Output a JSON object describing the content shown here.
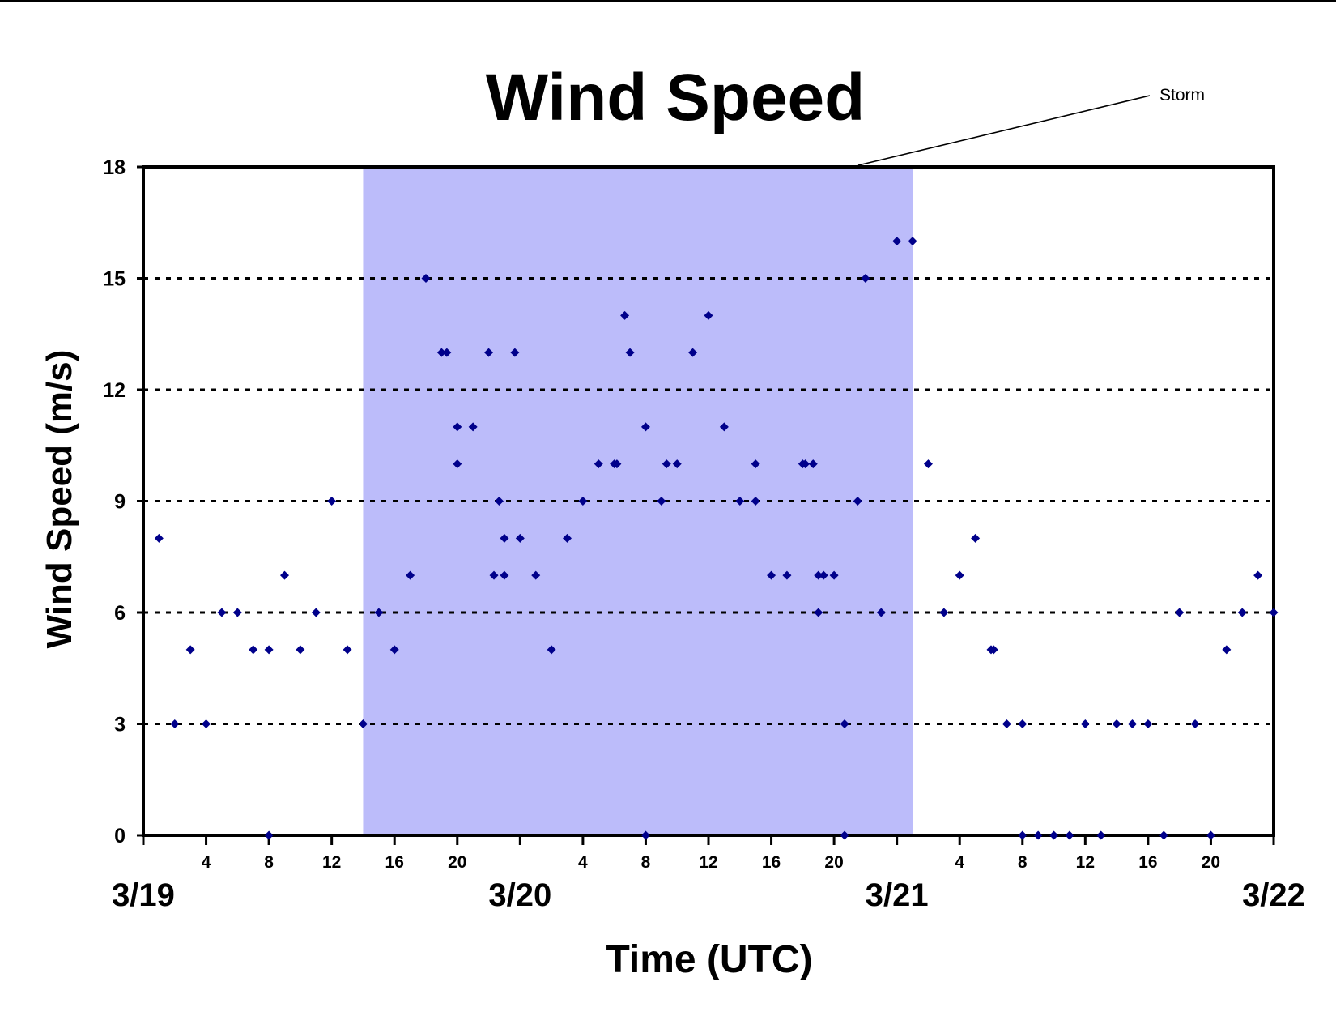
{
  "chart_data": {
    "type": "scatter",
    "title": "Wind Speed",
    "xlabel": "Time (UTC)",
    "ylabel": "Wind Speed (m/s)",
    "annotation": "Storm",
    "grid": true,
    "ylim": [
      0,
      18
    ],
    "yticks": [
      0,
      3,
      6,
      9,
      12,
      15,
      18
    ],
    "xlim": [
      "3/19 00:00",
      "3/22 00:00"
    ],
    "hour_tick_labels": [
      "4",
      "8",
      "12",
      "16",
      "20",
      "4",
      "8",
      "12",
      "16",
      "20",
      "4",
      "8",
      "12",
      "16",
      "20"
    ],
    "date_labels": [
      "3/19",
      "3/20",
      "3/21",
      "3/22"
    ],
    "storm_period": [
      "3/19 14:00",
      "3/21 01:00"
    ],
    "colors": {
      "points": "#00008b",
      "storm": "#bcbcfa",
      "axis": "#000000"
    },
    "series": [
      {
        "values": [
          [
            "3/19 01:00",
            8
          ],
          [
            "3/19 02:00",
            3
          ],
          [
            "3/19 03:00",
            5
          ],
          [
            "3/19 04:00",
            3
          ],
          [
            "3/19 05:00",
            6
          ],
          [
            "3/19 06:00",
            6
          ],
          [
            "3/19 07:00",
            5
          ],
          [
            "3/19 08:00",
            5
          ],
          [
            "3/19 08:00",
            0
          ],
          [
            "3/19 09:00",
            7
          ],
          [
            "3/19 10:00",
            5
          ],
          [
            "3/19 11:00",
            6
          ],
          [
            "3/19 12:00",
            9
          ],
          [
            "3/19 13:00",
            5
          ],
          [
            "3/19 14:00",
            3
          ],
          [
            "3/19 15:00",
            6
          ],
          [
            "3/19 16:00",
            5
          ],
          [
            "3/19 17:00",
            7
          ],
          [
            "3/19 18:00",
            15
          ],
          [
            "3/19 19:00",
            13
          ],
          [
            "3/19 19:20",
            13
          ],
          [
            "3/19 20:00",
            11
          ],
          [
            "3/19 20:00",
            10
          ],
          [
            "3/19 21:00",
            11
          ],
          [
            "3/19 22:00",
            13
          ],
          [
            "3/19 22:20",
            7
          ],
          [
            "3/19 22:40",
            9
          ],
          [
            "3/19 23:00",
            8
          ],
          [
            "3/19 23:00",
            7
          ],
          [
            "3/19 23:40",
            13
          ],
          [
            "3/20 00:00",
            8
          ],
          [
            "3/20 01:00",
            7
          ],
          [
            "3/20 02:00",
            5
          ],
          [
            "3/20 03:00",
            8
          ],
          [
            "3/20 04:00",
            9
          ],
          [
            "3/20 05:00",
            10
          ],
          [
            "3/20 06:00",
            10
          ],
          [
            "3/20 06:10",
            10
          ],
          [
            "3/20 06:40",
            14
          ],
          [
            "3/20 07:00",
            13
          ],
          [
            "3/20 08:00",
            11
          ],
          [
            "3/20 08:00",
            0
          ],
          [
            "3/20 09:00",
            9
          ],
          [
            "3/20 09:20",
            10
          ],
          [
            "3/20 10:00",
            10
          ],
          [
            "3/20 11:00",
            13
          ],
          [
            "3/20 12:00",
            14
          ],
          [
            "3/20 13:00",
            11
          ],
          [
            "3/20 14:00",
            9
          ],
          [
            "3/20 15:00",
            10
          ],
          [
            "3/20 15:00",
            9
          ],
          [
            "3/20 16:00",
            7
          ],
          [
            "3/20 17:00",
            7
          ],
          [
            "3/20 18:00",
            10
          ],
          [
            "3/20 18:10",
            10
          ],
          [
            "3/20 18:40",
            10
          ],
          [
            "3/20 19:00",
            7
          ],
          [
            "3/20 19:00",
            6
          ],
          [
            "3/20 19:20",
            7
          ],
          [
            "3/20 20:00",
            7
          ],
          [
            "3/20 20:40",
            3
          ],
          [
            "3/20 20:40",
            0
          ],
          [
            "3/20 21:30",
            9
          ],
          [
            "3/20 22:00",
            15
          ],
          [
            "3/20 23:00",
            6
          ],
          [
            "3/21 00:00",
            16
          ],
          [
            "3/21 01:00",
            16
          ],
          [
            "3/21 02:00",
            10
          ],
          [
            "3/21 03:00",
            6
          ],
          [
            "3/21 04:00",
            7
          ],
          [
            "3/21 05:00",
            8
          ],
          [
            "3/21 06:00",
            5
          ],
          [
            "3/21 06:10",
            5
          ],
          [
            "3/21 07:00",
            3
          ],
          [
            "3/21 08:00",
            3
          ],
          [
            "3/21 08:00",
            0
          ],
          [
            "3/21 09:00",
            0
          ],
          [
            "3/21 10:00",
            0
          ],
          [
            "3/21 11:00",
            0
          ],
          [
            "3/21 12:00",
            3
          ],
          [
            "3/21 13:00",
            0
          ],
          [
            "3/21 14:00",
            3
          ],
          [
            "3/21 15:00",
            3
          ],
          [
            "3/21 16:00",
            3
          ],
          [
            "3/21 17:00",
            0
          ],
          [
            "3/21 18:00",
            6
          ],
          [
            "3/21 19:00",
            3
          ],
          [
            "3/21 20:00",
            0
          ],
          [
            "3/21 21:00",
            5
          ],
          [
            "3/21 22:00",
            6
          ],
          [
            "3/21 23:00",
            7
          ],
          [
            "3/22 00:00",
            6
          ]
        ]
      }
    ]
  }
}
